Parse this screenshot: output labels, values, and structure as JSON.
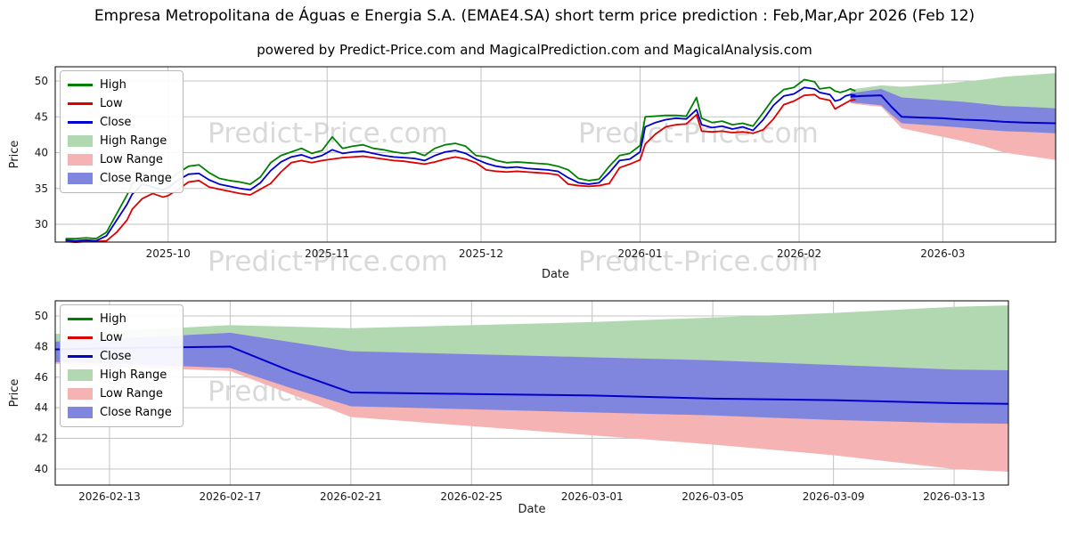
{
  "title": "Empresa Metropolitana de Águas e Energia S.A. (EMAE4.SA) short term price prediction : Feb,Mar,Apr 2026 (Feb 12)",
  "subtitle": "powered by Predict-Price.com and MagicalPrediction.com and MagicalAnalysis.com",
  "watermark": "Predict-Price.com",
  "colors": {
    "high_line": "#008000",
    "low_line": "#dd0000",
    "close_line": "#0000cc",
    "high_range": "#b2d8b2",
    "low_range": "#f6b3b3",
    "close_range": "#8086de",
    "grid": "#c3c3c3",
    "axis_text": "#1a1a1a",
    "border": "#000000"
  },
  "chart_data": [
    {
      "type": "line",
      "name": "history-and-prediction-chart",
      "xlabel": "Date",
      "ylabel": "Price",
      "x_encoding": "days since first historical sample",
      "x_domain": [
        -2,
        193
      ],
      "y_domain": [
        27.52,
        51.99
      ],
      "x_ticks": {
        "days": [
          20,
          51,
          81,
          112,
          143,
          171
        ],
        "labels": [
          "2025-10",
          "2025-11",
          "2025-12",
          "2026-01",
          "2026-02",
          "2026-03"
        ]
      },
      "y_ticks": [
        30,
        35,
        40,
        45,
        50
      ],
      "legend": [
        {
          "label": "High",
          "type": "line",
          "color": "#008000"
        },
        {
          "label": "Low",
          "type": "line",
          "color": "#dd0000"
        },
        {
          "label": "Close",
          "type": "line",
          "color": "#0000cc"
        },
        {
          "label": "High Range",
          "type": "patch",
          "color": "#b2d8b2"
        },
        {
          "label": "Low Range",
          "type": "patch",
          "color": "#f6b3b3"
        },
        {
          "label": "Close Range",
          "type": "patch",
          "color": "#8086de"
        }
      ],
      "hlc_columns": [
        "day",
        "high",
        "low",
        "close"
      ],
      "hlc": [
        [
          0,
          28.0,
          27.6,
          27.8
        ],
        [
          2,
          28.0,
          27.5,
          27.7
        ],
        [
          4,
          28.1,
          27.6,
          27.8
        ],
        [
          6,
          28.0,
          27.6,
          27.7
        ],
        [
          8,
          28.9,
          27.7,
          28.4
        ],
        [
          10,
          31.5,
          28.9,
          30.6
        ],
        [
          12,
          34.1,
          30.6,
          32.8
        ],
        [
          13,
          35.6,
          32.1,
          34.2
        ],
        [
          15,
          37.2,
          33.6,
          35.6
        ],
        [
          17,
          36.2,
          34.3,
          35.2
        ],
        [
          19,
          35.7,
          33.8,
          34.8
        ],
        [
          20,
          36.0,
          34.0,
          35.1
        ],
        [
          22,
          37.2,
          34.9,
          36.2
        ],
        [
          24,
          38.1,
          35.9,
          37.0
        ],
        [
          26,
          38.3,
          36.1,
          37.1
        ],
        [
          28,
          37.2,
          35.2,
          36.2
        ],
        [
          30,
          36.4,
          34.9,
          35.6
        ],
        [
          32,
          36.1,
          34.6,
          35.3
        ],
        [
          34,
          35.9,
          34.3,
          35.0
        ],
        [
          36,
          35.6,
          34.1,
          34.8
        ],
        [
          38,
          36.6,
          34.9,
          35.8
        ],
        [
          40,
          38.6,
          35.7,
          37.5
        ],
        [
          42,
          39.6,
          37.3,
          38.7
        ],
        [
          44,
          40.1,
          38.6,
          39.4
        ],
        [
          46,
          40.6,
          38.9,
          39.7
        ],
        [
          48,
          39.9,
          38.6,
          39.2
        ],
        [
          50,
          40.3,
          38.9,
          39.6
        ],
        [
          52,
          42.2,
          39.1,
          40.4
        ],
        [
          54,
          40.6,
          39.3,
          39.9
        ],
        [
          56,
          40.9,
          39.4,
          40.1
        ],
        [
          58,
          41.1,
          39.5,
          40.2
        ],
        [
          60,
          40.6,
          39.3,
          39.9
        ],
        [
          62,
          40.4,
          39.1,
          39.6
        ],
        [
          64,
          40.1,
          38.9,
          39.4
        ],
        [
          66,
          39.9,
          38.8,
          39.3
        ],
        [
          68,
          40.1,
          38.6,
          39.2
        ],
        [
          70,
          39.6,
          38.4,
          38.9
        ],
        [
          72,
          40.6,
          38.7,
          39.6
        ],
        [
          74,
          41.1,
          39.1,
          40.1
        ],
        [
          76,
          41.3,
          39.4,
          40.3
        ],
        [
          78,
          40.9,
          39.1,
          39.9
        ],
        [
          80,
          39.6,
          38.6,
          39.1
        ],
        [
          82,
          39.4,
          37.6,
          38.5
        ],
        [
          84,
          38.9,
          37.4,
          38.1
        ],
        [
          86,
          38.6,
          37.3,
          37.9
        ],
        [
          88,
          38.7,
          37.4,
          38.0
        ],
        [
          90,
          38.6,
          37.3,
          37.8
        ],
        [
          92,
          38.5,
          37.2,
          37.7
        ],
        [
          94,
          38.4,
          37.1,
          37.6
        ],
        [
          96,
          38.1,
          36.9,
          37.4
        ],
        [
          98,
          37.6,
          35.6,
          36.5
        ],
        [
          100,
          36.4,
          35.4,
          35.8
        ],
        [
          102,
          36.1,
          35.3,
          35.6
        ],
        [
          104,
          36.3,
          35.4,
          35.8
        ],
        [
          106,
          38.1,
          35.7,
          37.2
        ],
        [
          108,
          39.6,
          37.9,
          38.9
        ],
        [
          110,
          39.9,
          38.4,
          39.1
        ],
        [
          112,
          41.0,
          39.0,
          40.1
        ],
        [
          113,
          45.0,
          41.2,
          43.6
        ],
        [
          115,
          45.1,
          42.6,
          44.2
        ],
        [
          117,
          45.2,
          43.6,
          44.6
        ],
        [
          119,
          45.2,
          43.9,
          44.8
        ],
        [
          121,
          45.1,
          44.0,
          44.7
        ],
        [
          123,
          47.7,
          45.3,
          46.0
        ],
        [
          124,
          44.8,
          43.0,
          43.9
        ],
        [
          126,
          44.2,
          42.9,
          43.5
        ],
        [
          128,
          44.4,
          43.0,
          43.7
        ],
        [
          130,
          43.9,
          42.8,
          43.3
        ],
        [
          132,
          44.1,
          42.9,
          43.6
        ],
        [
          134,
          43.7,
          42.7,
          43.1
        ],
        [
          136,
          45.6,
          43.2,
          44.6
        ],
        [
          138,
          47.6,
          44.7,
          46.6
        ],
        [
          140,
          48.8,
          46.7,
          47.9
        ],
        [
          142,
          49.1,
          47.2,
          48.2
        ],
        [
          144,
          50.2,
          48.0,
          49.1
        ],
        [
          146,
          49.9,
          48.1,
          48.9
        ],
        [
          147,
          48.9,
          47.6,
          48.4
        ],
        [
          149,
          49.1,
          47.3,
          48.1
        ],
        [
          150,
          48.6,
          46.1,
          47.2
        ],
        [
          151,
          48.4,
          46.5,
          47.4
        ],
        [
          152,
          48.6,
          46.9,
          47.9
        ],
        [
          153,
          48.9,
          47.3,
          48.1
        ],
        [
          154,
          48.6,
          47.4,
          48.0
        ]
      ],
      "prediction_columns": [
        "day",
        "close",
        "close_hi",
        "close_lo",
        "high_top",
        "low_bottom"
      ],
      "prediction": [
        [
          153,
          47.8,
          48.3,
          47.0,
          48.8,
          46.9
        ],
        [
          155,
          47.9,
          48.5,
          46.9,
          49.0,
          46.7
        ],
        [
          159,
          48.0,
          48.9,
          46.6,
          49.4,
          46.4
        ],
        [
          161,
          46.4,
          48.3,
          45.3,
          49.3,
          44.9
        ],
        [
          163,
          45.0,
          47.7,
          44.1,
          49.2,
          43.4
        ],
        [
          167,
          44.9,
          47.5,
          43.9,
          49.4,
          42.8
        ],
        [
          171,
          44.8,
          47.3,
          43.7,
          49.6,
          42.2
        ],
        [
          175,
          44.6,
          47.1,
          43.5,
          49.9,
          41.6
        ],
        [
          179,
          44.5,
          46.8,
          43.2,
          50.2,
          40.9
        ],
        [
          183,
          44.3,
          46.5,
          43.0,
          50.6,
          40.0
        ],
        [
          187,
          44.2,
          46.4,
          42.9,
          50.8,
          39.6
        ],
        [
          193,
          44.1,
          46.2,
          42.7,
          51.1,
          39.0
        ]
      ]
    },
    {
      "type": "area",
      "name": "prediction-zoom-chart",
      "xlabel": "Date",
      "ylabel": "Price",
      "x_domain": [
        153.2,
        184.8
      ],
      "y_domain": [
        38.95,
        50.99
      ],
      "x_ticks": {
        "days": [
          155,
          159,
          163,
          167,
          171,
          175,
          179,
          183
        ],
        "labels": [
          "2026-02-13",
          "2026-02-17",
          "2026-02-21",
          "2026-02-25",
          "2026-03-01",
          "2026-03-05",
          "2026-03-09",
          "2026-03-13"
        ]
      },
      "y_ticks": [
        40,
        42,
        44,
        46,
        48,
        50
      ],
      "legend": [
        {
          "label": "High",
          "type": "line",
          "color": "#008000"
        },
        {
          "label": "Low",
          "type": "line",
          "color": "#dd0000"
        },
        {
          "label": "Close",
          "type": "line",
          "color": "#0000cc"
        },
        {
          "label": "High Range",
          "type": "patch",
          "color": "#b2d8b2"
        },
        {
          "label": "Low Range",
          "type": "patch",
          "color": "#f6b3b3"
        },
        {
          "label": "Close Range",
          "type": "patch",
          "color": "#8086de"
        }
      ],
      "prediction_source": 0
    }
  ]
}
